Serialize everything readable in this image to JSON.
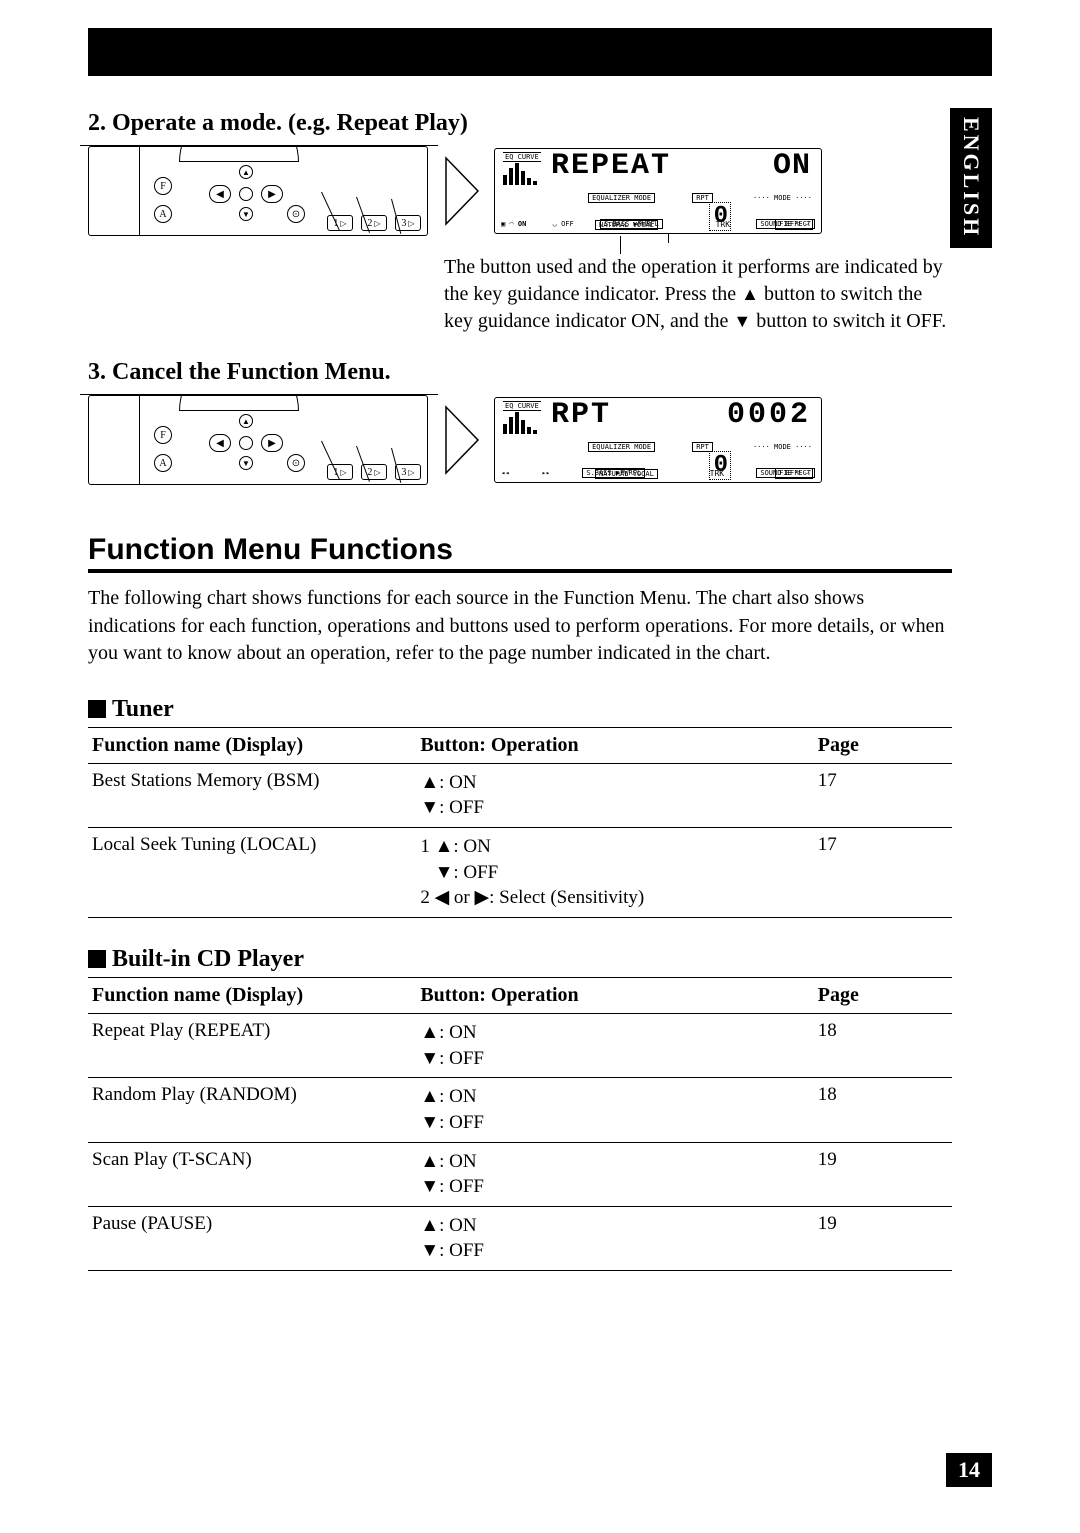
{
  "language_tab": "ENGLISH",
  "page_number": "14",
  "step2": {
    "heading": "2.  Operate a mode. (e.g. Repeat Play)",
    "lcd_main": "REPEAT",
    "lcd_sec": "ON",
    "lcd_eq": "EQ CURVE",
    "lcd_mid_labels": {
      "eqmode": "EQUALIZER MODE",
      "rpt": "RPT",
      "mode": "···· MODE ····"
    },
    "lcd_bottom": {
      "remote_on": "ON",
      "sbass": "S.BASS ▶PWRFL",
      "natural": "NATURAL  VOCAL",
      "trk": "TRK",
      "sound": "SOUND EFFECT",
      "fie": "FIE ▽ ⌣"
    },
    "big_num": "0",
    "explain_1": "The button used and the operation it performs are indicated by the key guidance indicator. Press the",
    "explain_2": " button to switch the key guidance indicator ON, and the ",
    "explain_3": " button to switch it OFF."
  },
  "step3": {
    "heading": "3.  Cancel the Function Menu.",
    "lcd_main": "RPT",
    "lcd_sec": "0002",
    "lcd_eq": "EQ CURVE",
    "lcd_mid_labels": {
      "eqmode": "EQUALIZER MODE",
      "rpt": "RPT",
      "mode": "···· MODE ····"
    },
    "lcd_bottom": {
      "prev": "◂◂",
      "next": "▸▸",
      "sbass": "S.BASS ▶PWRFL",
      "natural": "NATURAL  VOCAL",
      "trk": "TRK",
      "sound": "SOUND EFFECT",
      "fie": "FIE ▽ ⌣"
    },
    "big_num": "0"
  },
  "section": {
    "title": "Function Menu Functions",
    "intro": "The following chart shows functions for each source in the Function Menu. The chart also shows indications for each function, operations and buttons used to perform operations. For more details, or when you want to know about an operation, refer to the page number indicated in the chart."
  },
  "tuner": {
    "title": "Tuner",
    "header": {
      "name": "Function name (Display)",
      "op": "Button: Operation",
      "page": "Page"
    },
    "rows": [
      {
        "name": "Best Stations Memory (BSM)",
        "ops": [
          "▲: ON",
          "▼: OFF"
        ],
        "page": "17"
      },
      {
        "name": "Local Seek Tuning (LOCAL)",
        "ops": [
          "1 ▲: ON",
          "   ▼: OFF",
          "2 ◀ or ▶: Select (Sensitivity)"
        ],
        "page": "17"
      }
    ]
  },
  "cd": {
    "title": "Built-in CD Player",
    "header": {
      "name": "Function name (Display)",
      "op": "Button: Operation",
      "page": "Page"
    },
    "rows": [
      {
        "name": "Repeat Play (REPEAT)",
        "ops": [
          "▲: ON",
          "▼: OFF"
        ],
        "page": "18"
      },
      {
        "name": "Random Play (RANDOM)",
        "ops": [
          "▲: ON",
          "▼: OFF"
        ],
        "page": "18"
      },
      {
        "name": "Scan Play (T-SCAN)",
        "ops": [
          "▲: ON",
          "▼: OFF"
        ],
        "page": "19"
      },
      {
        "name": "Pause (PAUSE)",
        "ops": [
          "▲: ON",
          "▼: OFF"
        ],
        "page": "19"
      }
    ]
  },
  "panel": {
    "f": "F",
    "a": "A",
    "num1": "1",
    "num2": "2",
    "num3": "3"
  }
}
